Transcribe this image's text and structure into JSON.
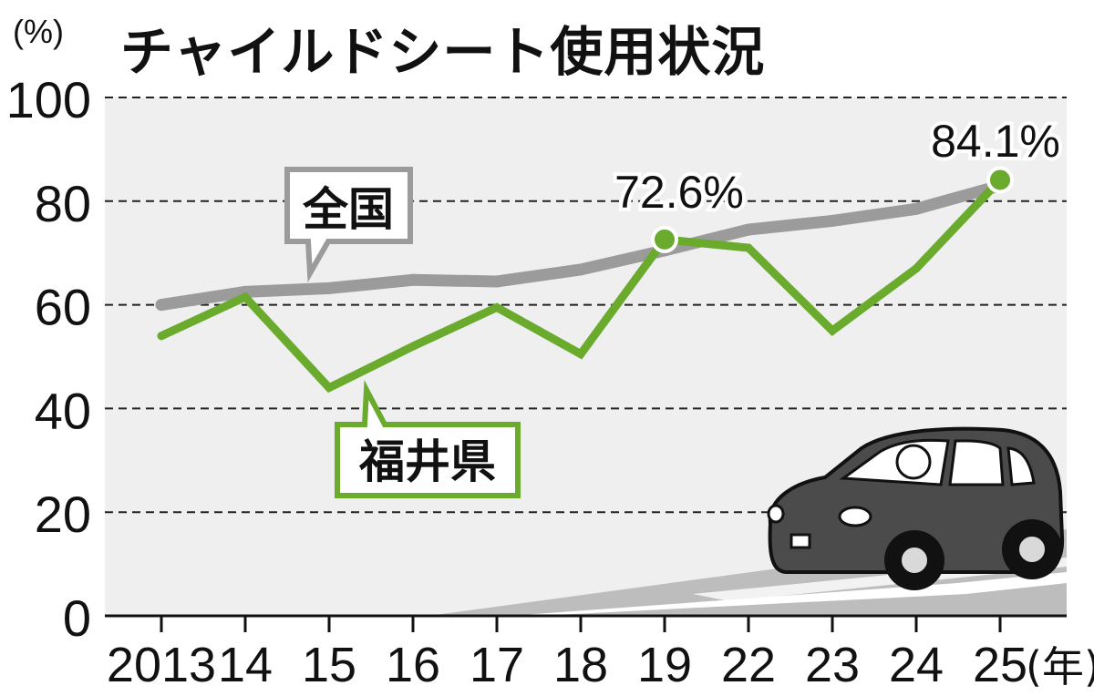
{
  "header": {
    "title": "チャイルドシート使用状況",
    "y_unit": "(%)",
    "x_unit": "(年)"
  },
  "labels": {
    "national": "全国",
    "fukui": "福井県",
    "point_2019": "72.6%",
    "point_2025": "84.1%"
  },
  "colors": {
    "national": "#9b9b9b",
    "fukui": "#6aab2e",
    "plot_bg": "#efefef",
    "car_body": "#4b4b4b"
  },
  "icons": {
    "decoration": "car-icon"
  },
  "chart_data": {
    "type": "line",
    "title": "チャイルドシート使用状況",
    "categories": [
      "2013",
      "14",
      "15",
      "16",
      "17",
      "18",
      "19",
      "22",
      "23",
      "24",
      "25"
    ],
    "yticks": [
      "0",
      "20",
      "40",
      "60",
      "80",
      "100"
    ],
    "ylim": [
      0,
      100
    ],
    "grid": "horizontal-dashed",
    "series": [
      {
        "name": "全国",
        "values": [
          60.0,
          62.5,
          63.2,
          64.8,
          64.5,
          66.8,
          70.5,
          74.5,
          76.2,
          78.5,
          83.0
        ]
      },
      {
        "name": "福井県",
        "values": [
          54.0,
          61.5,
          44.0,
          52.0,
          59.5,
          50.5,
          72.6,
          71.0,
          55.0,
          67.0,
          84.1
        ]
      }
    ],
    "annotations": [
      {
        "category": "19",
        "series": "福井県",
        "text": "72.6%"
      },
      {
        "category": "25",
        "series": "福井県",
        "text": "84.1%"
      }
    ]
  }
}
